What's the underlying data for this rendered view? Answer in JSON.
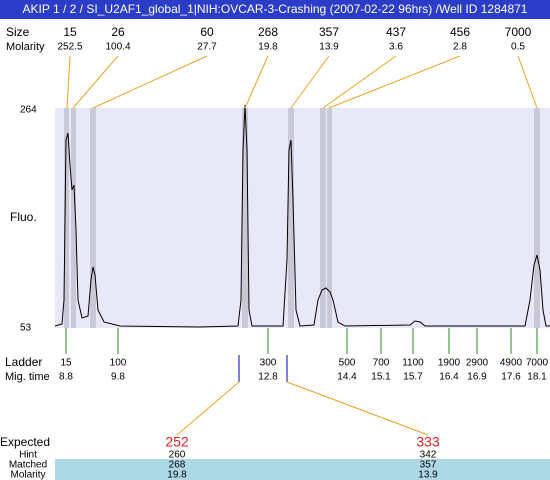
{
  "header": {
    "title": "AKIP 1 / 2 / SI_U2AF1_global_1|NIH:OVCAR-3-Crashing (2007-02-22 96hrs) /Well ID 1284871"
  },
  "peak_labels": {
    "size": "Size",
    "molarity": "Molarity"
  },
  "peaks": [
    {
      "size": 15,
      "molarity": 252.5
    },
    {
      "size": 26,
      "molarity": 100.4
    },
    {
      "size": 60,
      "molarity": 27.7
    },
    {
      "size": 268,
      "molarity": 19.8
    },
    {
      "size": 357,
      "molarity": 13.9
    },
    {
      "size": 437,
      "molarity": 3.6
    },
    {
      "size": 456,
      "molarity": 2.8
    },
    {
      "size": 7000,
      "molarity": 0.5
    }
  ],
  "axis": {
    "label": "Fluo.",
    "max": 264,
    "min": 53
  },
  "ladder": {
    "label": "Ladder",
    "time_label": "Mig. time",
    "sizes": [
      15,
      100,
      300,
      500,
      700,
      1100,
      1900,
      2900,
      4900,
      7000
    ],
    "times": [
      8.8,
      9.8,
      12.8,
      14.4,
      15.1,
      15.7,
      16.4,
      16.9,
      17.6,
      18.1
    ]
  },
  "expected": {
    "label": "Expected",
    "hint_label": "Hint",
    "matched_label": "Matched",
    "molarity_label": "Molarity",
    "items": [
      {
        "expected": 252,
        "hint": 260,
        "matched": 268,
        "molarity": 19.8
      },
      {
        "expected": 333,
        "hint": 342,
        "matched": 357,
        "molarity": 13.9
      }
    ]
  }
}
